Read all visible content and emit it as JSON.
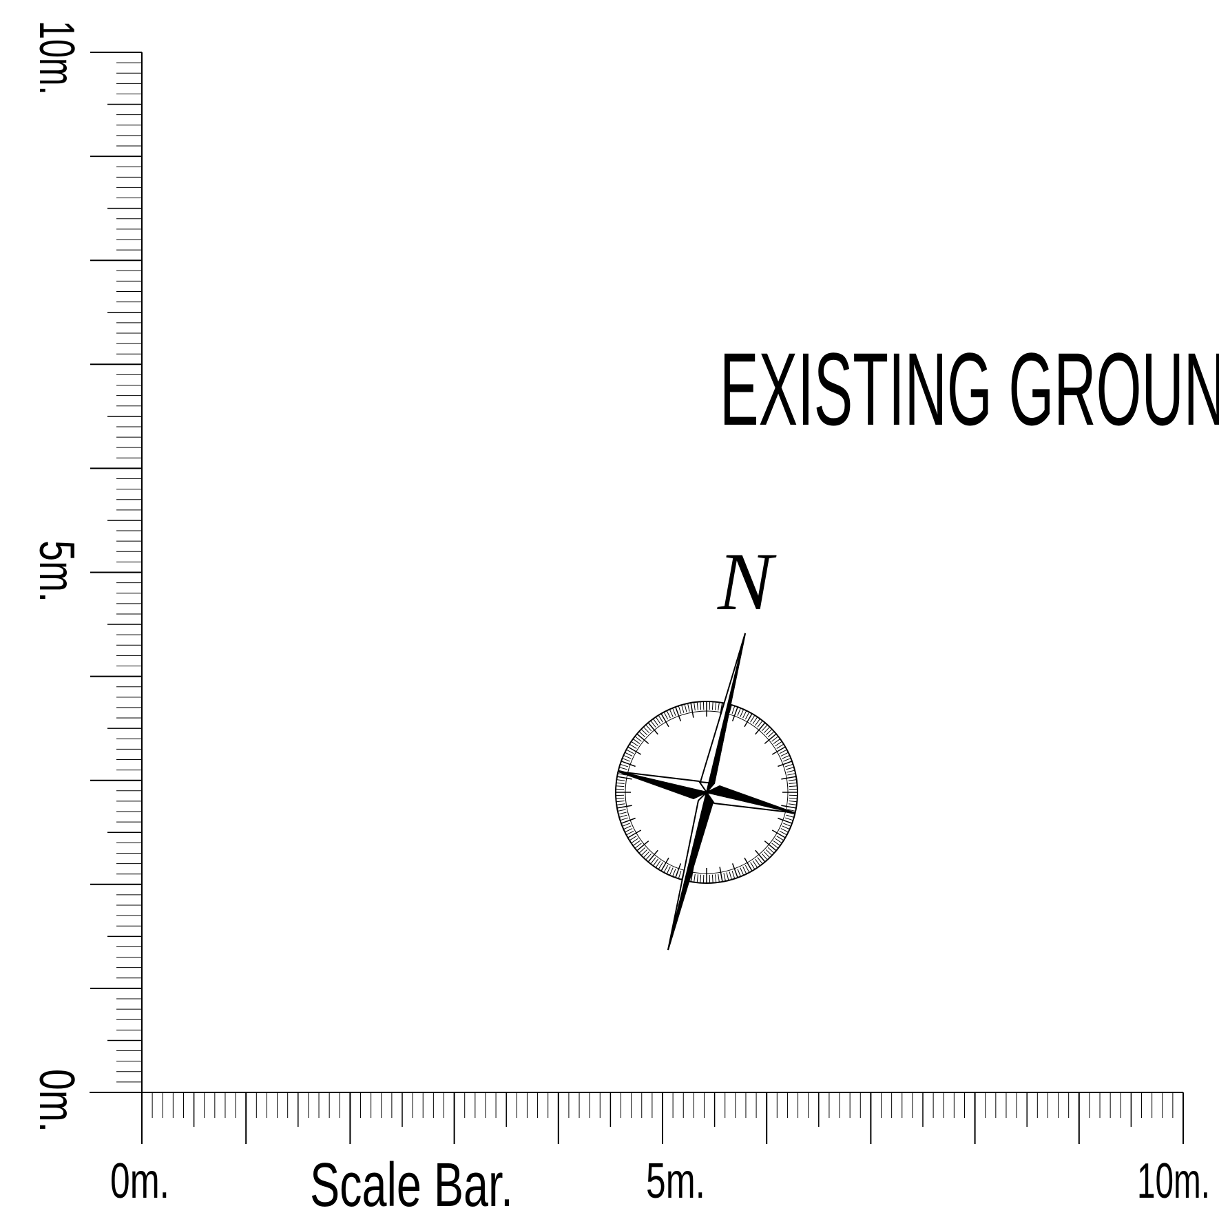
{
  "title": "EXISTING  GROUN",
  "north_arrow": {
    "label": "N"
  },
  "horizontal_scale": {
    "caption": "Scale  Bar.",
    "labels": {
      "start": "0m.",
      "middle": "5m.",
      "end": "10m."
    }
  },
  "vertical_scale": {
    "labels": {
      "start": "0m.",
      "middle": "5m.",
      "end": "10m."
    }
  },
  "icons": [
    "north-arrow-icon",
    "compass-rose-icon"
  ],
  "colors": {
    "ink": "#000000",
    "paper": "#ffffff"
  }
}
